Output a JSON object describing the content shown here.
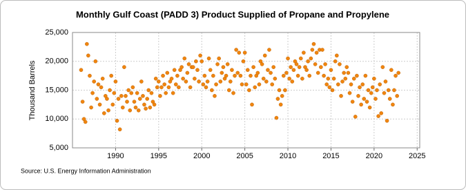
{
  "chart_data": {
    "type": "scatter",
    "title": "Monthly Gulf Coast (PADD 3) Product Supplied of Propane and Propylene",
    "y_label": "Thousand Barrels",
    "source": "Source: U.S. Energy Information Administration",
    "color": "#f0850f",
    "xlim": [
      1985,
      2025.3
    ],
    "ylim": [
      5000,
      25000
    ],
    "xticks": [
      1990,
      1995,
      2000,
      2005,
      2010,
      2015,
      2020,
      2025
    ],
    "yticks": [
      {
        "value": 5000,
        "label": "5,000"
      },
      {
        "value": 10000,
        "label": "10,000"
      },
      {
        "value": 15000,
        "label": "15,000"
      },
      {
        "value": 20000,
        "label": "20,000"
      },
      {
        "value": 25000,
        "label": "25,000"
      }
    ],
    "grid": true,
    "x": [
      1986,
      1986.17,
      1986.33,
      1986.5,
      1986.67,
      1986.83,
      1987,
      1987.17,
      1987.33,
      1987.5,
      1987.67,
      1987.83,
      1988,
      1988.17,
      1988.33,
      1988.5,
      1988.67,
      1988.83,
      1989,
      1989.17,
      1989.33,
      1989.5,
      1989.67,
      1989.83,
      1990,
      1990.17,
      1990.33,
      1990.5,
      1990.67,
      1990.83,
      1991,
      1991.17,
      1991.33,
      1991.5,
      1991.67,
      1991.83,
      1992,
      1992.17,
      1992.33,
      1992.5,
      1992.67,
      1992.83,
      1993,
      1993.17,
      1993.33,
      1993.5,
      1993.67,
      1993.83,
      1994,
      1994.17,
      1994.33,
      1994.5,
      1994.67,
      1994.83,
      1995,
      1995.17,
      1995.33,
      1995.5,
      1995.67,
      1995.83,
      1996,
      1996.17,
      1996.33,
      1996.5,
      1996.67,
      1996.83,
      1997,
      1997.17,
      1997.33,
      1997.5,
      1997.67,
      1997.83,
      1998,
      1998.17,
      1998.33,
      1998.5,
      1998.67,
      1998.83,
      1999,
      1999.17,
      1999.33,
      1999.5,
      1999.67,
      1999.83,
      2000,
      2000.17,
      2000.33,
      2000.5,
      2000.67,
      2000.83,
      2001,
      2001.17,
      2001.33,
      2001.5,
      2001.67,
      2001.83,
      2002,
      2002.17,
      2002.33,
      2002.5,
      2002.67,
      2002.83,
      2003,
      2003.17,
      2003.33,
      2003.5,
      2003.67,
      2003.83,
      2004,
      2004.17,
      2004.33,
      2004.5,
      2004.67,
      2004.83,
      2005,
      2005.17,
      2005.33,
      2005.5,
      2005.67,
      2005.83,
      2006,
      2006.17,
      2006.33,
      2006.5,
      2006.67,
      2006.83,
      2007,
      2007.17,
      2007.33,
      2007.5,
      2007.67,
      2007.83,
      2008,
      2008.17,
      2008.33,
      2008.5,
      2008.67,
      2008.83,
      2009,
      2009.17,
      2009.33,
      2009.5,
      2009.67,
      2009.83,
      2010,
      2010.17,
      2010.33,
      2010.5,
      2010.67,
      2010.83,
      2011,
      2011.17,
      2011.33,
      2011.5,
      2011.67,
      2011.83,
      2012,
      2012.17,
      2012.33,
      2012.5,
      2012.67,
      2012.83,
      2013,
      2013.17,
      2013.33,
      2013.5,
      2013.67,
      2013.83,
      2014,
      2014.17,
      2014.33,
      2014.5,
      2014.67,
      2014.83,
      2015,
      2015.17,
      2015.33,
      2015.5,
      2015.67,
      2015.83,
      2016,
      2016.17,
      2016.33,
      2016.5,
      2016.67,
      2016.83,
      2017,
      2017.17,
      2017.33,
      2017.5,
      2017.67,
      2017.83,
      2018,
      2018.17,
      2018.33,
      2018.5,
      2018.67,
      2018.83,
      2019,
      2019.17,
      2019.33,
      2019.5,
      2019.67,
      2019.83,
      2020,
      2020.17,
      2020.33,
      2020.5,
      2020.67,
      2020.83,
      2021,
      2021.17,
      2021.33,
      2021.5,
      2021.67,
      2021.83,
      2022,
      2022.17,
      2022.33,
      2022.5,
      2022.67,
      2022.83
    ],
    "values": [
      18500,
      13000,
      10000,
      9500,
      23000,
      21000,
      17500,
      12000,
      14500,
      16500,
      20000,
      13500,
      16000,
      12500,
      15500,
      17000,
      11000,
      14000,
      13500,
      11500,
      15000,
      17500,
      12500,
      14500,
      16500,
      9700,
      13500,
      8200,
      14000,
      12000,
      19000,
      14000,
      13000,
      15000,
      11500,
      14500,
      15500,
      13000,
      12000,
      14500,
      11500,
      13500,
      16500,
      14000,
      12500,
      11800,
      13500,
      15000,
      12000,
      14500,
      13000,
      12500,
      17000,
      15500,
      16500,
      14000,
      15500,
      17500,
      16000,
      14500,
      18000,
      15500,
      16500,
      17000,
      14500,
      18500,
      16000,
      17500,
      15500,
      18500,
      19000,
      17000,
      20500,
      16500,
      18000,
      19500,
      15500,
      19000,
      19000,
      17000,
      20000,
      18500,
      16500,
      21000,
      20000,
      16000,
      17500,
      15500,
      16500,
      20500,
      18500,
      15000,
      17500,
      14000,
      16000,
      19500,
      20500,
      16500,
      18000,
      19000,
      17000,
      17500,
      19500,
      15000,
      16500,
      18500,
      14500,
      17500,
      22000,
      18000,
      21500,
      17500,
      16000,
      20000,
      21500,
      16000,
      18500,
      15000,
      17500,
      12500,
      19000,
      15500,
      17500,
      18000,
      16000,
      20000,
      19500,
      17000,
      21000,
      16500,
      18500,
      22000,
      18000,
      16000,
      19000,
      17000,
      10200,
      13500,
      15000,
      12500,
      14000,
      17500,
      15000,
      18000,
      20500,
      17000,
      19000,
      16500,
      18500,
      20000,
      19500,
      17500,
      19000,
      20500,
      17000,
      21500,
      19000,
      18500,
      20000,
      17500,
      20500,
      22000,
      23000,
      19500,
      21500,
      18000,
      22000,
      19000,
      22000,
      17500,
      19500,
      16000,
      17000,
      15500,
      18500,
      15000,
      17000,
      20000,
      21000,
      16000,
      19500,
      14000,
      16500,
      18000,
      17000,
      19000,
      18000,
      14500,
      16000,
      13000,
      17000,
      10400,
      17500,
      14000,
      15500,
      12500,
      16000,
      13500,
      17500,
      13000,
      15000,
      12000,
      14500,
      15500,
      17000,
      13500,
      15000,
      10500,
      16000,
      11000,
      19000,
      14500,
      16500,
      9700,
      15000,
      13500,
      18500,
      12500,
      15000,
      17500,
      14000,
      18000
    ]
  }
}
